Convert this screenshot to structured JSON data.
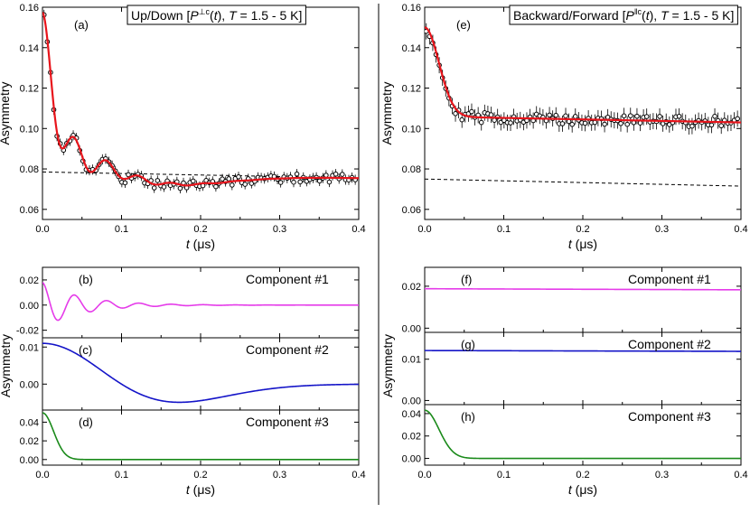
{
  "colors": {
    "fit_line": "#e8141b",
    "baseline": "#000000",
    "component_1": "#e53be9",
    "component_2": "#1414c8",
    "component_3": "#1a8a1a",
    "data_marker": "#000000"
  },
  "chart_data": [
    {
      "id": "a",
      "type": "scatter",
      "panel_label": "(a)",
      "title": "Up/Down [P⊥c(t), T = 1.5 - 5 K]",
      "title_parts": [
        "Up/Down [",
        "P",
        "⊥c",
        "(",
        "t",
        "), ",
        "T",
        " = 1.5 - 5 K]"
      ],
      "xlabel": "t (μs)",
      "ylabel": "Asymmetry",
      "xlim": [
        0,
        0.4
      ],
      "ylim": [
        0.055,
        0.16
      ],
      "x_ticks": [
        "0.0",
        "0.1",
        "0.2",
        "0.3",
        "0.4"
      ],
      "y_ticks": [
        "0.06",
        "0.08",
        "0.10",
        "0.12",
        "0.14",
        "0.16"
      ],
      "x_tick_values": [
        0,
        0.1,
        0.2,
        0.3,
        0.4
      ],
      "y_tick_values": [
        0.06,
        0.08,
        0.1,
        0.12,
        0.14,
        0.16
      ],
      "fit": {
        "components": [
          {
            "amp": 0.018,
            "freq_mhz": 24.5,
            "damp": 20
          },
          {
            "amp": 0.011,
            "gauss_b": 10,
            "gauss_c": 0.12
          },
          {
            "amp": 0.05,
            "gauss_width": 0.014
          }
        ],
        "baseline": {
          "start": 0.0785,
          "slope": -0.0075
        }
      },
      "data": {
        "x_start": 0.002,
        "x_step": 0.0041,
        "count": 97,
        "noise": 0.0022,
        "error_bar": 0.0025,
        "seed": 17
      },
      "baseline_dashed": true
    },
    {
      "id": "e",
      "type": "scatter",
      "panel_label": "(e)",
      "title": "Backward/Forward [P‖c(t), T = 1.5 - 5 K]",
      "title_parts": [
        "Backward/Forward [",
        "P",
        "‖c",
        "(",
        "t",
        "), ",
        "T",
        " = 1.5 - 5 K]"
      ],
      "xlabel": "t (μs)",
      "ylabel": "Asymmetry",
      "xlim": [
        0,
        0.4
      ],
      "ylim": [
        0.055,
        0.16
      ],
      "x_ticks": [
        "0.0",
        "0.1",
        "0.2",
        "0.3",
        "0.4"
      ],
      "y_ticks": [
        "0.06",
        "0.08",
        "0.10",
        "0.12",
        "0.14",
        "0.16"
      ],
      "x_tick_values": [
        0,
        0.1,
        0.2,
        0.3,
        0.4
      ],
      "y_tick_values": [
        0.06,
        0.08,
        0.1,
        0.12,
        0.14,
        0.16
      ],
      "fit": {
        "components": [
          {
            "amp": 0.0,
            "freq_mhz": 0,
            "damp": 0
          },
          {
            "amp": 0.0,
            "gauss_b": 0,
            "gauss_c": 0
          },
          {
            "amp": 0.044,
            "gauss_width": 0.018
          }
        ],
        "baseline": {
          "start": 0.106,
          "slope": -0.0075
        }
      },
      "dashed_line": {
        "start": 0.075,
        "end": 0.0715
      },
      "data": {
        "x_start": 0.002,
        "x_step": 0.0041,
        "count": 97,
        "noise": 0.0028,
        "error_bar": 0.004,
        "seed": 29
      },
      "baseline_dashed": false
    },
    {
      "id": "b",
      "type": "line",
      "panel_label": "(b)",
      "series_name": "Component #1",
      "xlim": [
        0,
        0.4
      ],
      "ylim": [
        -0.026,
        0.03
      ],
      "y_ticks": [
        "0.02",
        "0.00",
        "-0.02"
      ],
      "y_tick_values": [
        0.02,
        0.0,
        -0.02
      ],
      "function": {
        "kind": "osc",
        "amp": 0.018,
        "freq_mhz": 24.5,
        "damp": 20
      },
      "color_key": "component_1"
    },
    {
      "id": "c",
      "type": "line",
      "panel_label": "(c)",
      "series_name": "Component #2",
      "xlim": [
        0,
        0.4
      ],
      "ylim": [
        -0.007,
        0.0125
      ],
      "y_ticks": [
        "0.01",
        "0.00"
      ],
      "y_tick_values": [
        0.01,
        0.0
      ],
      "function": {
        "kind": "gauss_kt",
        "amp": 0.011,
        "b": 10,
        "c": 0.12
      },
      "color_key": "component_2"
    },
    {
      "id": "d",
      "type": "line",
      "panel_label": "(d)",
      "series_name": "Component #3",
      "xlabel": "t (μs)",
      "xlim": [
        0,
        0.4
      ],
      "ylim": [
        -0.006,
        0.053
      ],
      "x_ticks": [
        "0.0",
        "0.1",
        "0.2",
        "0.3",
        "0.4"
      ],
      "x_tick_values": [
        0,
        0.1,
        0.2,
        0.3,
        0.4
      ],
      "y_ticks": [
        "0.04",
        "0.02",
        "0.00"
      ],
      "y_tick_values": [
        0.04,
        0.02,
        0.0
      ],
      "function": {
        "kind": "gauss",
        "amp": 0.05,
        "width": 0.014
      },
      "color_key": "component_3"
    },
    {
      "id": "f",
      "type": "line",
      "panel_label": "(f)",
      "series_name": "Component #1",
      "xlim": [
        0,
        0.4
      ],
      "ylim": [
        -0.002,
        0.029
      ],
      "y_ticks": [
        "0.02",
        "0.00"
      ],
      "y_tick_values": [
        0.02,
        0.0
      ],
      "function": {
        "kind": "const",
        "start": 0.0188,
        "end": 0.0183
      },
      "color_key": "component_1"
    },
    {
      "id": "g",
      "type": "line",
      "panel_label": "(g)",
      "series_name": "Component #2",
      "ylabel": "Asymmetry",
      "xlim": [
        0,
        0.4
      ],
      "ylim": [
        -0.001,
        0.0165
      ],
      "y_ticks": [
        "0.01",
        "0.00"
      ],
      "y_tick_values": [
        0.01,
        0.0
      ],
      "function": {
        "kind": "const",
        "start": 0.0121,
        "end": 0.0119
      },
      "color_key": "component_2"
    },
    {
      "id": "h",
      "type": "line",
      "panel_label": "(h)",
      "series_name": "Component #3",
      "xlabel": "t (μs)",
      "xlim": [
        0,
        0.4
      ],
      "ylim": [
        -0.006,
        0.048
      ],
      "x_ticks": [
        "0.0",
        "0.1",
        "0.2",
        "0.3",
        "0.4"
      ],
      "x_tick_values": [
        0,
        0.1,
        0.2,
        0.3,
        0.4
      ],
      "y_ticks": [
        "0.04",
        "0.02",
        "0.00"
      ],
      "y_tick_values": [
        0.04,
        0.02,
        0.0
      ],
      "function": {
        "kind": "gauss",
        "amp": 0.043,
        "width": 0.018
      },
      "color_key": "component_3"
    }
  ],
  "shared_labels": {
    "left_components_ylabel": "Asymmetry",
    "right_components_ylabel": "Asymmetry"
  }
}
